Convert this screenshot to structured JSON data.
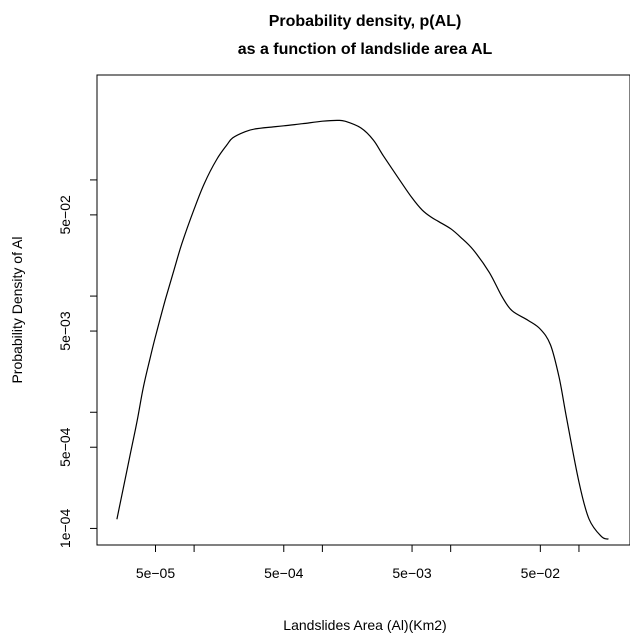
{
  "chart_data": {
    "type": "line",
    "title": "Probability density, p(AL)",
    "subtitle": "as a function of landslide area AL",
    "xlabel": "Landslides Area (Al)(Km2)",
    "ylabel": "Probability Density of Al",
    "x_scale": "log",
    "y_scale": "log",
    "xlim": [
      1.75e-05,
      0.25
    ],
    "ylim": [
      7.2e-05,
      0.8
    ],
    "x_ticks": [
      {
        "value": 5e-05,
        "label": "5e−05"
      },
      {
        "value": 0.0001,
        "label": ""
      },
      {
        "value": 0.0005,
        "label": "5e−04"
      },
      {
        "value": 0.001,
        "label": ""
      },
      {
        "value": 0.005,
        "label": "5e−03"
      },
      {
        "value": 0.01,
        "label": ""
      },
      {
        "value": 0.05,
        "label": "5e−02"
      },
      {
        "value": 0.1,
        "label": ""
      }
    ],
    "y_ticks": [
      {
        "value": 0.0001,
        "label": "1e−04"
      },
      {
        "value": 0.0005,
        "label": "5e−04"
      },
      {
        "value": 0.001,
        "label": ""
      },
      {
        "value": 0.005,
        "label": "5e−03"
      },
      {
        "value": 0.01,
        "label": ""
      },
      {
        "value": 0.05,
        "label": "5e−02"
      },
      {
        "value": 0.1,
        "label": ""
      }
    ],
    "grid": false,
    "series": [
      {
        "color": "#000000",
        "x": [
          2.5e-05,
          2.8e-05,
          3.2e-05,
          3.6e-05,
          4e-05,
          4.5e-05,
          5e-05,
          6e-05,
          7e-05,
          8e-05,
          0.0001,
          0.00012,
          0.00015,
          0.00018,
          0.0002,
          0.00025,
          0.0003,
          0.0004,
          0.0005,
          0.0007,
          0.001,
          0.0013,
          0.0015,
          0.002,
          0.0025,
          0.003,
          0.004,
          0.005,
          0.006,
          0.007,
          0.008,
          0.01,
          0.012,
          0.015,
          0.02,
          0.025,
          0.03,
          0.04,
          0.05,
          0.06,
          0.07,
          0.08,
          0.1,
          0.12,
          0.15,
          0.17
        ],
        "y": [
          0.00012,
          0.00022,
          0.00045,
          0.00085,
          0.0016,
          0.0028,
          0.0045,
          0.0095,
          0.017,
          0.028,
          0.056,
          0.093,
          0.15,
          0.2,
          0.23,
          0.26,
          0.275,
          0.285,
          0.292,
          0.305,
          0.32,
          0.325,
          0.32,
          0.28,
          0.22,
          0.16,
          0.1,
          0.07,
          0.055,
          0.048,
          0.044,
          0.038,
          0.032,
          0.025,
          0.016,
          0.01,
          0.0075,
          0.0062,
          0.0052,
          0.0038,
          0.002,
          0.0009,
          0.00025,
          0.00012,
          8.5e-05,
          8.1e-05
        ]
      }
    ]
  }
}
